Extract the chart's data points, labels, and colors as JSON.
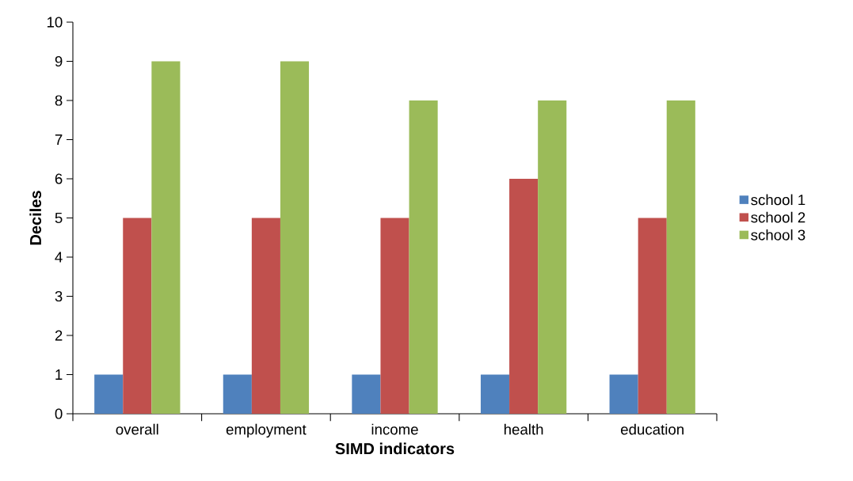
{
  "chart_data": {
    "type": "bar",
    "xlabel": "SIMD indicators",
    "ylabel": "Deciles",
    "categories": [
      "overall",
      "employment",
      "income",
      "health",
      "education"
    ],
    "series": [
      {
        "name": "school 1",
        "color": "#4f81bd",
        "values": [
          1,
          1,
          1,
          1,
          1
        ]
      },
      {
        "name": "school 2",
        "color": "#c0504d",
        "values": [
          5,
          5,
          5,
          6,
          5
        ]
      },
      {
        "name": "school 3",
        "color": "#9bbb59",
        "values": [
          9,
          9,
          8,
          8,
          8
        ]
      }
    ],
    "ylim": [
      0,
      10
    ],
    "yticks": [
      0,
      1,
      2,
      3,
      4,
      5,
      6,
      7,
      8,
      9,
      10
    ],
    "legend": "right"
  }
}
